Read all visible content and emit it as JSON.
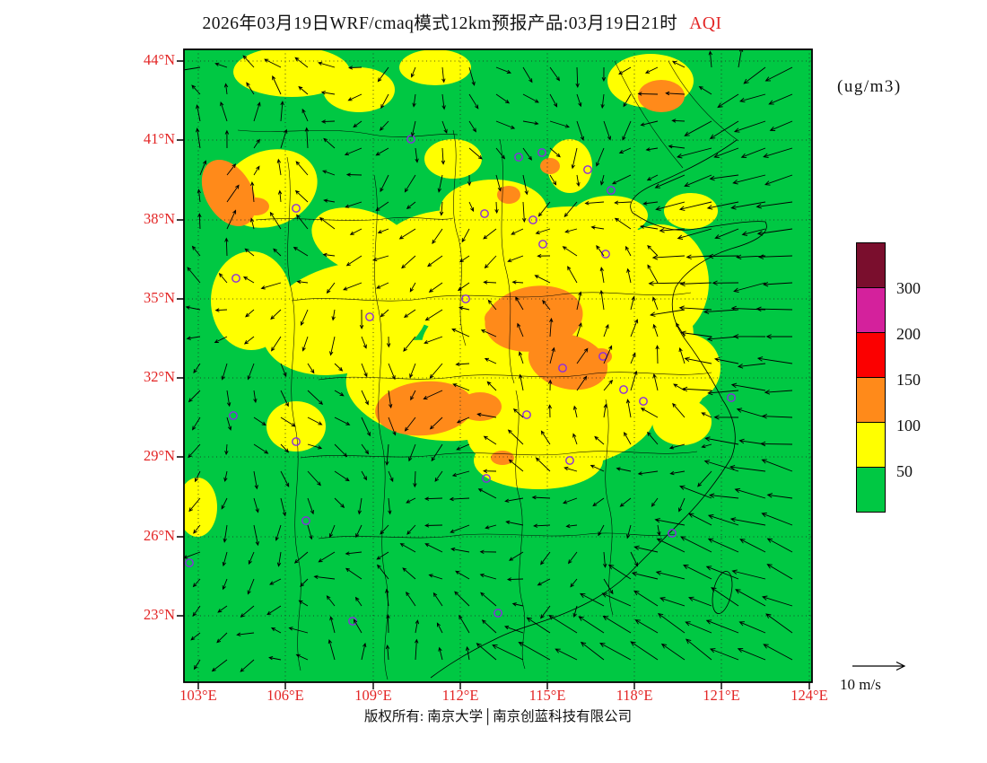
{
  "title": {
    "main": "2026年03月19日WRF/cmaq模式12km预报产品:03月19日21时",
    "pollutant": "AQI"
  },
  "units_label": "(ug/m3)",
  "axes": {
    "lat": [
      "44°N",
      "41°N",
      "38°N",
      "35°N",
      "32°N",
      "29°N",
      "26°N",
      "23°N"
    ],
    "lon": [
      "103°E",
      "106°E",
      "109°E",
      "112°E",
      "115°E",
      "118°E",
      "121°E",
      "124°E"
    ]
  },
  "colorbar": {
    "labels": [
      "300",
      "200",
      "150",
      "100",
      "50"
    ],
    "colors": [
      "#7a0e2d",
      "#d4219c",
      "#fb0000",
      "#ff8a1a",
      "#ffff00",
      "#00c843"
    ]
  },
  "wind_legend": "10 m/s",
  "footer": "版权所有: 南京大学│南京创蓝科技有限公司",
  "map_colors": {
    "background": "#00c843",
    "moderate": "#ffff00",
    "unhealthy": "#ff8a1a",
    "station_marker": "#8a2be2",
    "label_red": "#e32525"
  }
}
